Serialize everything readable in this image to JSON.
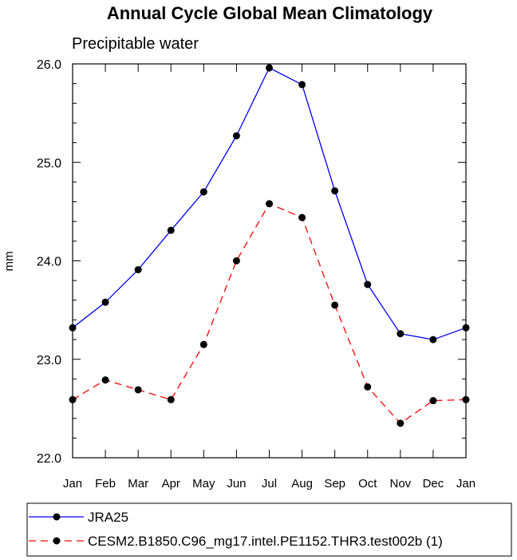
{
  "chart_data": {
    "type": "line",
    "title": "Annual Cycle Global Mean Climatology",
    "subtitle": "Precipitable water",
    "xlabel": "",
    "ylabel": "mm",
    "categories": [
      "Jan",
      "Feb",
      "Mar",
      "Apr",
      "May",
      "Jun",
      "Jul",
      "Aug",
      "Sep",
      "Oct",
      "Nov",
      "Dec",
      "Jan"
    ],
    "ylim": [
      22.0,
      26.0
    ],
    "yticks": [
      "22.0",
      "23.0",
      "24.0",
      "25.0",
      "26.0"
    ],
    "grid": false,
    "legend_position": "bottom",
    "series": [
      {
        "name": "JRA25",
        "color": "#0000ff",
        "dash": "solid",
        "marker": "circle",
        "values": [
          23.32,
          23.58,
          23.91,
          24.31,
          24.7,
          25.27,
          25.96,
          25.79,
          24.71,
          23.76,
          23.26,
          23.2,
          23.32
        ]
      },
      {
        "name": "CESM2.B1850.C96_mg17.intel.PE1152.THR3.test002b (1)",
        "color": "#ff0000",
        "dash": "dashed",
        "marker": "circle",
        "values": [
          22.59,
          22.79,
          22.69,
          22.59,
          23.15,
          24.0,
          24.58,
          24.44,
          23.55,
          22.72,
          22.35,
          22.58,
          22.59
        ]
      }
    ]
  }
}
